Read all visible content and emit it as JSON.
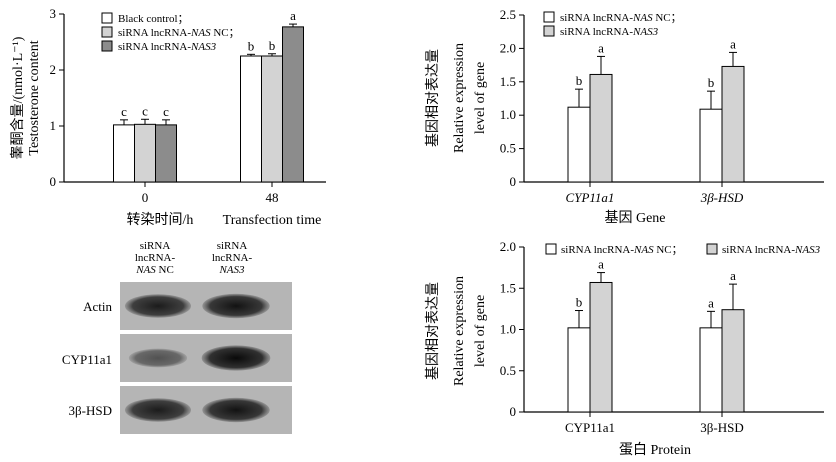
{
  "colors": {
    "white": "#ffffff",
    "light_gray": "#d3d3d3",
    "dark_gray": "#8c8c8c",
    "axis": "#000000"
  },
  "chart_data": [
    {
      "type": "bar",
      "panel": "top-left",
      "categories": [
        "0",
        "48"
      ],
      "series": [
        {
          "name": "Black control；",
          "color": "#ffffff",
          "values": [
            1.02,
            2.25
          ],
          "errors": [
            0.09,
            0.03
          ],
          "letters": [
            "c",
            "b"
          ]
        },
        {
          "name": "siRNA lncRNA-NAS NC；",
          "color": "#d3d3d3",
          "values": [
            1.03,
            2.25
          ],
          "errors": [
            0.09,
            0.04
          ],
          "letters": [
            "c",
            "b"
          ]
        },
        {
          "name": "siRNA lncRNA-NAS3",
          "color": "#8c8c8c",
          "values": [
            1.02,
            2.77
          ],
          "errors": [
            0.09,
            0.05
          ],
          "letters": [
            "c",
            "a"
          ]
        }
      ],
      "ylabel_cn": "睾酮含量/(nmol·L⁻¹)",
      "ylabel_en": "Testosterone content",
      "xlabel_cn": "转染时间/h",
      "xlabel_en": "Transfection time",
      "ylim": [
        0,
        3
      ],
      "yticks": [
        "0",
        "1",
        "2",
        "3"
      ],
      "legend_position": "top-left"
    },
    {
      "type": "bar",
      "panel": "top-right",
      "categories": [
        "CYP11a1",
        "3β-HSD"
      ],
      "series": [
        {
          "name": "siRNA lncRNA-NAS NC；",
          "color": "#ffffff",
          "values": [
            1.12,
            1.09
          ],
          "errors": [
            0.27,
            0.27
          ],
          "letters": [
            "b",
            "b"
          ]
        },
        {
          "name": "siRNA lncRNA-NAS3",
          "color": "#d3d3d3",
          "values": [
            1.61,
            1.73
          ],
          "errors": [
            0.27,
            0.21
          ],
          "letters": [
            "a",
            "a"
          ]
        }
      ],
      "ylabel_cn": "基因相对表达量",
      "ylabel_en_1": "Relative expression",
      "ylabel_en_2": "level of gene",
      "xlabel_cn": "基因",
      "xlabel_en": "Gene",
      "ylim": [
        0,
        2.5
      ],
      "yticks": [
        "0",
        "0.5",
        "1.0",
        "1.5",
        "2.0",
        "2.5"
      ],
      "legend_position": "top"
    },
    {
      "type": "bar",
      "panel": "bottom-right",
      "categories": [
        "CYP11a1",
        "3β-HSD"
      ],
      "series": [
        {
          "name": "siRNA lncRNA-NAS NC；",
          "color": "#ffffff",
          "values": [
            1.02,
            1.02
          ],
          "errors": [
            0.21,
            0.2
          ],
          "letters": [
            "b",
            "a"
          ]
        },
        {
          "name": "siRNA lncRNA-NAS3",
          "color": "#d3d3d3",
          "values": [
            1.57,
            1.24
          ],
          "errors": [
            0.12,
            0.31
          ],
          "letters": [
            "a",
            "a"
          ]
        }
      ],
      "ylabel_cn": "基因相对表达量",
      "ylabel_en_1": "Relative expression",
      "ylabel_en_2": "level of gene",
      "xlabel_cn": "蛋白",
      "xlabel_en": "Protein",
      "ylim": [
        0,
        2.0
      ],
      "yticks": [
        "0",
        "0.5",
        "1.0",
        "1.5",
        "2.0"
      ],
      "legend_position": "top"
    }
  ],
  "western_blot": {
    "columns": [
      {
        "line1": "siRNA",
        "line2": "lncRNA-",
        "line3_italic": "NAS",
        "line3_rest": " NC"
      },
      {
        "line1": "siRNA",
        "line2": "lncRNA-",
        "line3_italic": "NAS3",
        "line3_rest": ""
      }
    ],
    "rows": [
      "Actin",
      "CYP11a1",
      "3β-HSD"
    ],
    "band_intensity": [
      [
        0.85,
        0.9
      ],
      [
        0.55,
        0.95
      ],
      [
        0.85,
        0.9
      ]
    ]
  }
}
